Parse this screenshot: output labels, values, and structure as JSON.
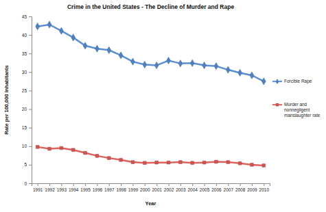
{
  "chart_data": {
    "type": "line",
    "title": "Crime in the United States - The Decline of Murder and Rape",
    "x_label": "Year",
    "y_label": "Rate per 100,000 Inhabitants",
    "categories": [
      "1991",
      "1992",
      "1993",
      "1994",
      "1995",
      "1996",
      "1997",
      "1998",
      "1999",
      "2000",
      "2001",
      "2002",
      "2003",
      "2004",
      "2005",
      "2006",
      "2007",
      "2008",
      "2009",
      "2010"
    ],
    "series": [
      {
        "name": "Forcible Rape",
        "color": "#5b8fd3",
        "marker": "diamond",
        "line_style": "solid",
        "values": [
          42.3,
          42.8,
          41.1,
          39.3,
          37.1,
          36.3,
          35.9,
          34.5,
          32.8,
          32.0,
          31.8,
          33.1,
          32.3,
          32.4,
          31.8,
          31.6,
          30.6,
          29.8,
          29.1,
          27.5
        ]
      },
      {
        "name": "Murder and nonnegligent manslaughter rate",
        "color": "#e0605c",
        "marker": "square",
        "line_style": "solid",
        "values": [
          9.8,
          9.3,
          9.5,
          9.0,
          8.2,
          7.4,
          6.8,
          6.3,
          5.7,
          5.5,
          5.6,
          5.6,
          5.7,
          5.5,
          5.6,
          5.8,
          5.7,
          5.4,
          5.0,
          4.8
        ]
      }
    ],
    "ylim": [
      0,
      45
    ],
    "yticks": [
      0,
      5,
      10,
      15,
      20,
      25,
      30,
      35,
      40,
      45
    ],
    "grid": false,
    "legend": "right"
  }
}
